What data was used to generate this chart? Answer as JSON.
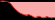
{
  "x": [
    0,
    1,
    2,
    3,
    4,
    5,
    6,
    7,
    8,
    9,
    10,
    11,
    12,
    13,
    14,
    15,
    16,
    17,
    18,
    19,
    20,
    21,
    22,
    23,
    24,
    25,
    26,
    27
  ],
  "y": [
    0.3,
    0.6,
    0.5,
    0.2,
    -0.3,
    -1.5,
    -3.5,
    -5.5,
    -7.0,
    -8.5,
    -9.5,
    -10.2,
    -10.8,
    -11.0,
    -10.5,
    -11.2,
    -12.0,
    -13.0,
    -12.5,
    -11.8,
    -12.5,
    -13.2,
    -12.8,
    -12.2,
    -12.8,
    -13.2,
    -13.0,
    -12.8
  ],
  "baseline": 0.0,
  "positive_color": "#88c040",
  "negative_color": "#f8aaaa",
  "line_color": "#cc1111",
  "background_color": "#000000",
  "figsize": [
    0.55,
    0.2
  ],
  "dpi": 100,
  "ylim_min": -15.0,
  "ylim_max": 1.2
}
